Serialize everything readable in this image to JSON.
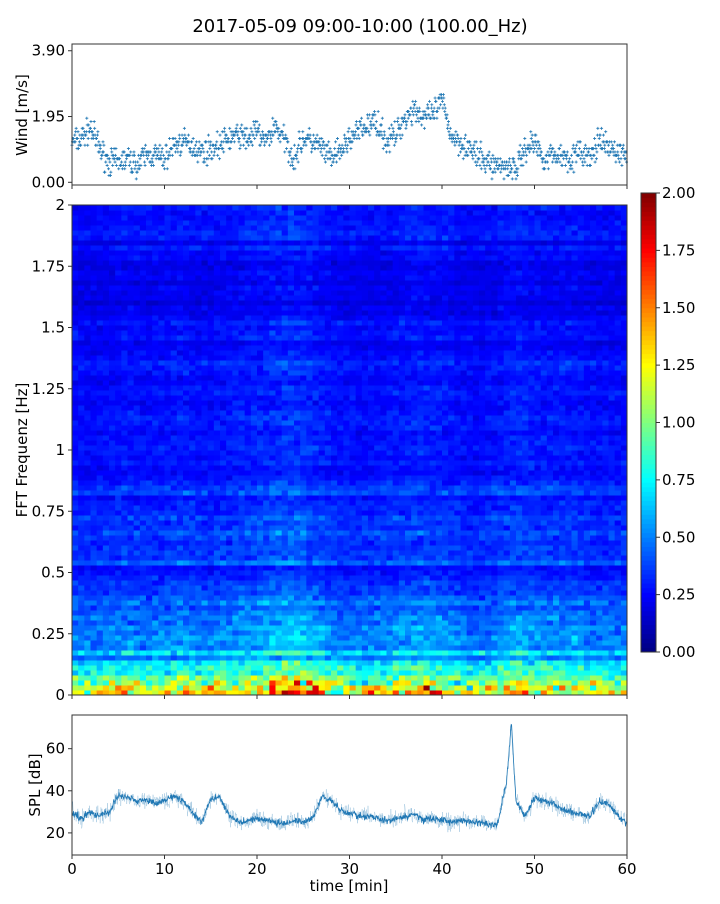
{
  "chart_data": [
    {
      "type": "scatter",
      "title": "2017-05-09 09:00-10:00 (100.00_Hz)",
      "ylabel": "Wind [m/s]",
      "xlim": [
        0,
        60
      ],
      "ylim": [
        -0.08,
        4.1
      ],
      "yticks": [
        "0.00",
        "1.95",
        "3.90"
      ],
      "marker": "+",
      "color": "#1f77b4",
      "x": [
        0,
        1,
        2,
        3,
        4,
        5,
        6,
        7,
        8,
        9,
        10,
        11,
        12,
        13,
        14,
        15,
        16,
        17,
        18,
        19,
        20,
        21,
        22,
        23,
        24,
        25,
        26,
        27,
        28,
        29,
        30,
        31,
        32,
        33,
        34,
        35,
        36,
        37,
        38,
        39,
        40,
        41,
        42,
        43,
        44,
        45,
        46,
        47,
        48,
        49,
        50,
        51,
        52,
        53,
        54,
        55,
        56,
        57,
        58,
        59,
        60
      ],
      "values": [
        1.2,
        1.3,
        1.6,
        1.0,
        0.6,
        0.6,
        0.7,
        0.5,
        0.8,
        0.8,
        0.7,
        1.1,
        1.2,
        1.1,
        0.9,
        1.0,
        1.1,
        1.3,
        1.4,
        1.3,
        1.5,
        1.2,
        1.7,
        1.2,
        0.7,
        1.3,
        1.2,
        1.0,
        0.7,
        0.9,
        1.3,
        1.5,
        1.7,
        1.8,
        1.2,
        1.4,
        1.9,
        2.2,
        1.9,
        2.0,
        2.4,
        1.4,
        1.2,
        1.0,
        0.7,
        0.6,
        0.5,
        0.5,
        0.4,
        1.0,
        1.2,
        0.7,
        0.8,
        0.8,
        0.7,
        0.9,
        0.7,
        1.2,
        1.0,
        0.9,
        0.8
      ]
    },
    {
      "type": "heatmap",
      "ylabel": "FFT Frequenz [Hz]",
      "xlim": [
        0,
        60
      ],
      "ylim": [
        0,
        2
      ],
      "yticks": [
        "0",
        "0.25",
        "0.5",
        "0.75",
        "1",
        "1.25",
        "1.5",
        "1.75",
        "2"
      ],
      "colormap": "jet",
      "colorbar": {
        "range": [
          0,
          2
        ],
        "ticks": [
          "0.00",
          "0.25",
          "0.50",
          "0.75",
          "1.00",
          "1.25",
          "1.50",
          "1.75",
          "2.00"
        ]
      },
      "freq_bins_hz": [
        0,
        0.1,
        0.2,
        0.3,
        0.4,
        0.5,
        0.6,
        0.7,
        0.8,
        0.9,
        1.0,
        1.1,
        1.2,
        1.3,
        1.4,
        1.5,
        1.6,
        1.7,
        1.8,
        1.9
      ],
      "mean_level_by_freq": [
        1.3,
        0.7,
        0.55,
        0.45,
        0.38,
        0.35,
        0.33,
        0.32,
        0.3,
        0.28,
        0.27,
        0.26,
        0.26,
        0.25,
        0.25,
        0.24,
        0.22,
        0.21,
        0.22,
        0.25
      ],
      "time_bins_min": [
        0,
        2,
        4,
        6,
        8,
        10,
        12,
        14,
        16,
        18,
        20,
        22,
        24,
        26,
        28,
        30,
        32,
        34,
        36,
        38,
        40,
        42,
        44,
        46,
        48,
        50,
        52,
        54,
        56,
        58
      ],
      "relative_level_by_time": [
        1.0,
        0.95,
        1.0,
        1.05,
        1.0,
        1.05,
        1.1,
        1.0,
        1.05,
        1.1,
        1.15,
        1.25,
        1.3,
        1.2,
        1.05,
        1.0,
        1.0,
        1.05,
        1.1,
        1.15,
        1.1,
        1.0,
        0.95,
        1.05,
        1.2,
        1.1,
        1.05,
        1.1,
        1.0,
        1.0
      ]
    },
    {
      "type": "line",
      "xlabel": "time [min]",
      "ylabel": "SPL [dB]",
      "xlim": [
        0,
        60
      ],
      "ylim": [
        9.5,
        76
      ],
      "xticks": [
        "0",
        "10",
        "20",
        "30",
        "40",
        "50",
        "60"
      ],
      "yticks": [
        "20",
        "40",
        "60"
      ],
      "color": "#1f77b4",
      "x": [
        0,
        1,
        2,
        3,
        4,
        5,
        6,
        7,
        8,
        9,
        10,
        11,
        12,
        13,
        14,
        15,
        16,
        17,
        18,
        19,
        20,
        21,
        22,
        23,
        24,
        25,
        26,
        27,
        28,
        29,
        30,
        31,
        32,
        33,
        34,
        35,
        36,
        37,
        38,
        39,
        40,
        41,
        42,
        43,
        44,
        45,
        46,
        47,
        47.5,
        48,
        49,
        50,
        51,
        52,
        53,
        54,
        55,
        56,
        57,
        58,
        59,
        60
      ],
      "values": [
        30,
        27,
        30,
        28,
        30,
        38,
        37,
        35,
        36,
        34,
        35,
        38,
        35,
        30,
        25,
        36,
        37,
        28,
        25,
        26,
        27,
        26,
        25,
        24,
        26,
        25,
        27,
        37,
        36,
        31,
        29,
        28,
        28,
        27,
        26,
        27,
        28,
        29,
        26,
        27,
        26,
        25,
        26,
        25,
        25,
        24,
        24,
        45,
        72,
        35,
        28,
        37,
        35,
        34,
        31,
        30,
        29,
        28,
        35,
        34,
        28,
        25
      ]
    }
  ]
}
